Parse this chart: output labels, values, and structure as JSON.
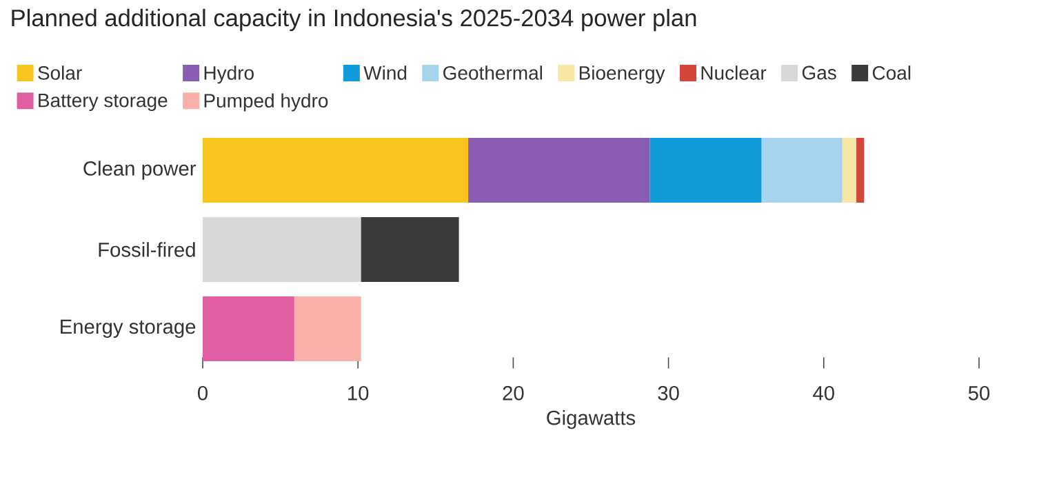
{
  "chart_data": {
    "type": "bar",
    "orientation": "horizontal",
    "stacked": true,
    "title": "Planned additional capacity in Indonesia's 2025-2034 power plan",
    "xlabel": "Gigawatts",
    "categories": [
      "Clean power",
      "Fossil-fired",
      "Energy storage"
    ],
    "series": [
      {
        "name": "Solar",
        "color": "#f7c51e",
        "values": [
          17.1,
          null,
          null
        ]
      },
      {
        "name": "Hydro",
        "color": "#8a5cb4",
        "values": [
          11.7,
          null,
          null
        ]
      },
      {
        "name": "Wind",
        "color": "#129bd9",
        "values": [
          7.2,
          null,
          null
        ]
      },
      {
        "name": "Geothermal",
        "color": "#a6d4ee",
        "values": [
          5.2,
          null,
          null
        ]
      },
      {
        "name": "Bioenergy",
        "color": "#f6e7a6",
        "values": [
          0.9,
          null,
          null
        ]
      },
      {
        "name": "Nuclear",
        "color": "#d4453b",
        "values": [
          0.5,
          null,
          null
        ]
      },
      {
        "name": "Gas",
        "color": "#d8d8d8",
        "values": [
          null,
          10.2,
          null
        ]
      },
      {
        "name": "Coal",
        "color": "#3a3a3a",
        "values": [
          null,
          6.3,
          null
        ]
      },
      {
        "name": "Battery storage",
        "color": "#e05fa3",
        "values": [
          null,
          null,
          5.9
        ]
      },
      {
        "name": "Pumped hydro",
        "color": "#f9b1a9",
        "values": [
          null,
          null,
          4.3
        ]
      }
    ],
    "xlim": [
      0,
      50
    ],
    "xticks": [
      0,
      10,
      20,
      30,
      40,
      50
    ],
    "legend": "top"
  }
}
